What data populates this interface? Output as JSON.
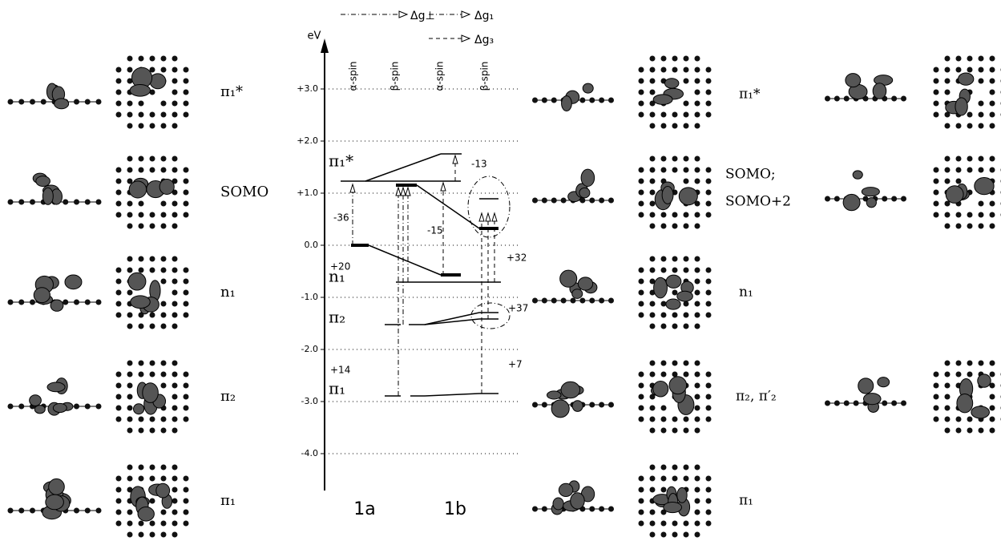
{
  "legend": {
    "perp": "Δg⊥",
    "g1": "Δg₁",
    "g3": "Δg₃"
  },
  "axis": {
    "unit": "eV",
    "ticks": [
      "+3.0",
      "+2.0",
      "+1.0",
      "0.0",
      "-1.0",
      "-2.0",
      "-3.0",
      "-4.0"
    ]
  },
  "columns": [
    "α-spin",
    "β-spin",
    "α-spin",
    "β-spin"
  ],
  "compounds": [
    "1a",
    "1b"
  ],
  "levels": [
    "π₁*",
    "n₁",
    "π₂",
    "π₁"
  ],
  "shifts": [
    "-36",
    "-13",
    "-15",
    "+20",
    "+32",
    "+37",
    "+14",
    "+7"
  ],
  "left_labels": [
    "π₁*",
    "SOMO",
    "n₁",
    "π₂",
    "π₁"
  ],
  "right_labels": [
    "π₁*",
    "SOMO;",
    "SOMO+2",
    "n₁",
    "π₂, π′₂",
    "π₁"
  ]
}
